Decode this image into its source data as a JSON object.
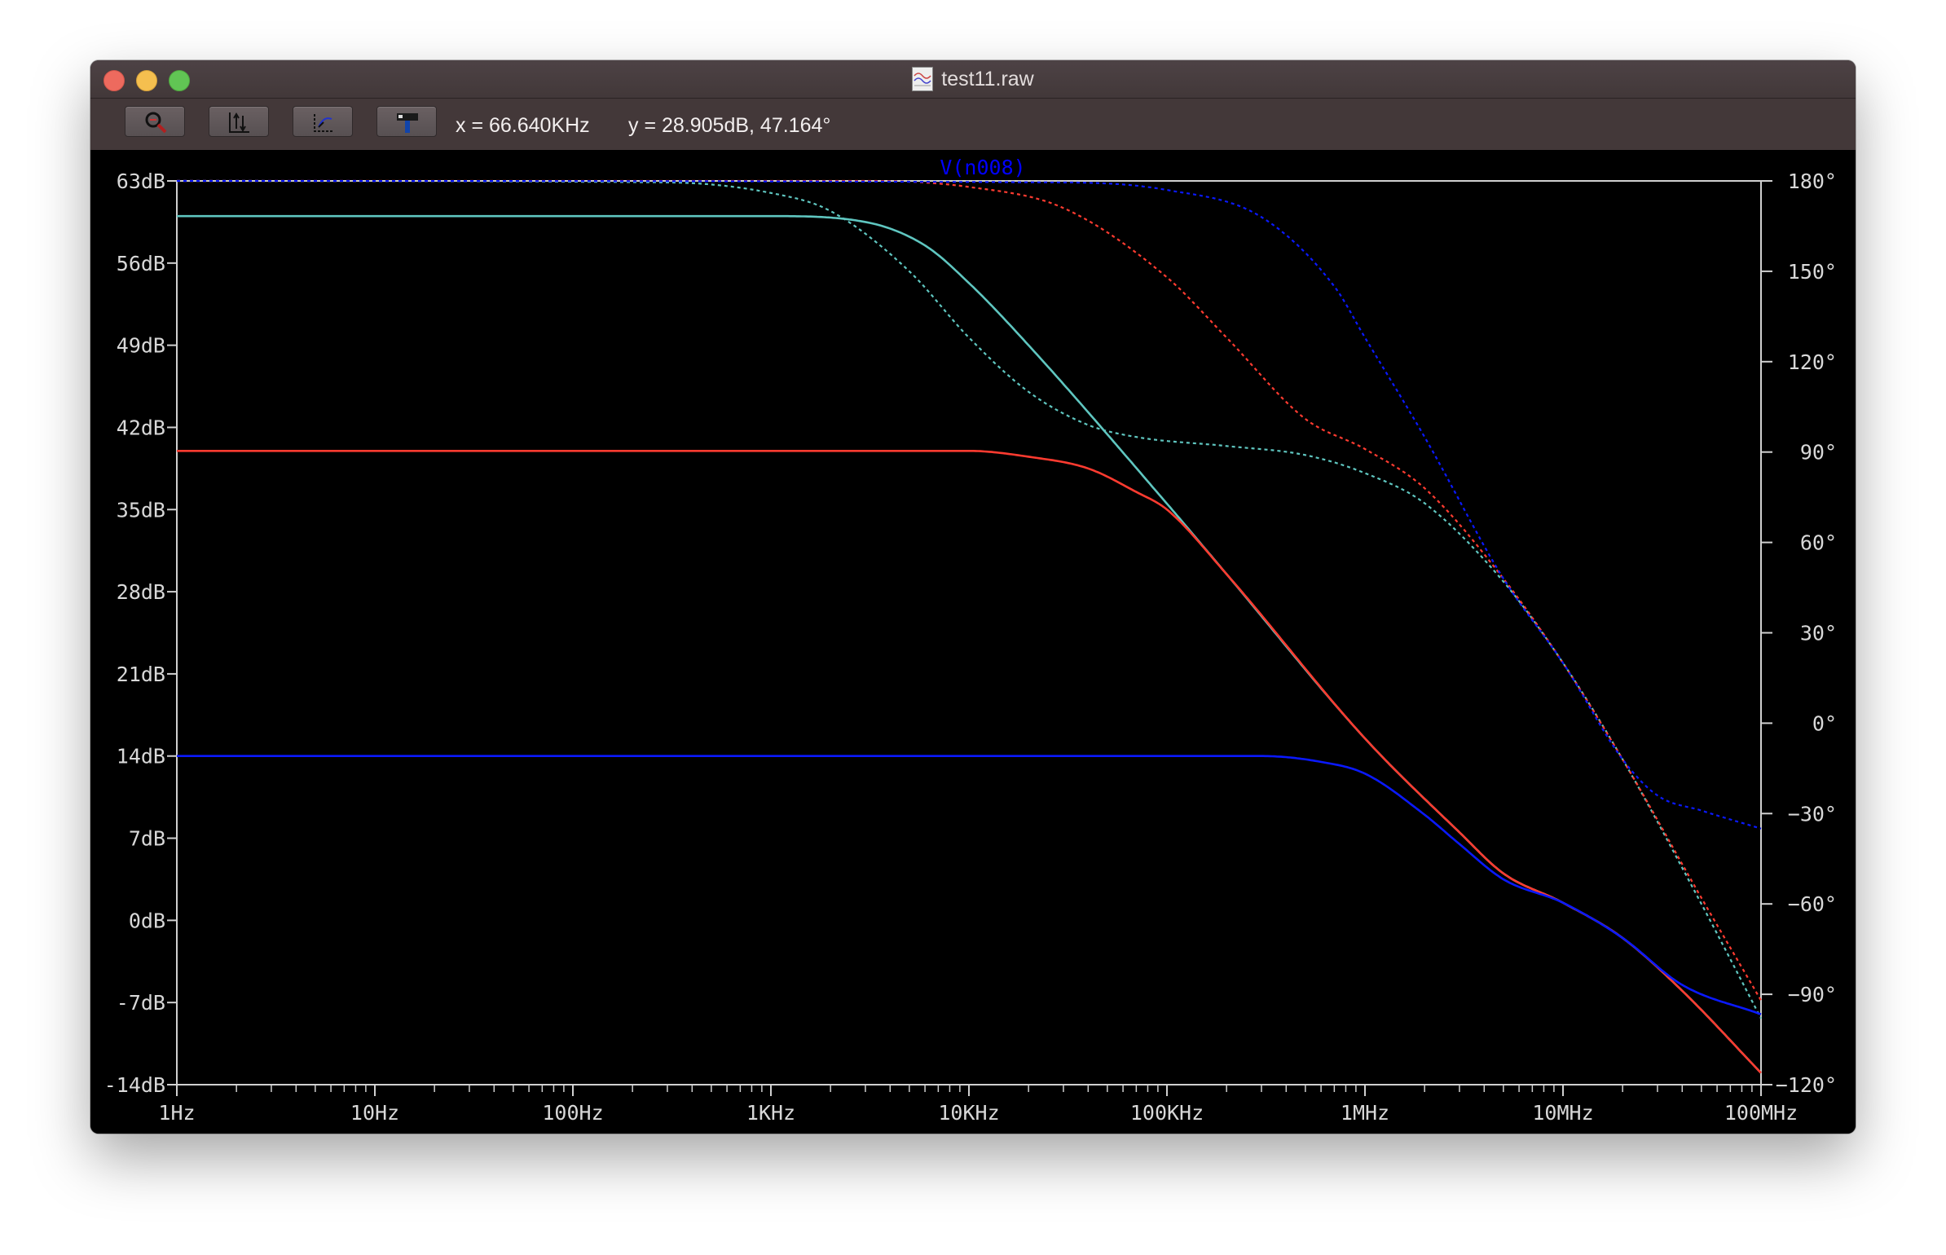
{
  "window": {
    "title": "test11.raw",
    "toolbar": {
      "buttons": [
        {
          "icon": "zoom-icon"
        },
        {
          "icon": "autorange-icon"
        },
        {
          "icon": "pan-icon"
        },
        {
          "icon": "pick-trace-icon"
        }
      ],
      "cursor_x": "x = 66.640KHz",
      "cursor_y": "y = 28.905dB, 47.164°"
    }
  },
  "chart_data": {
    "type": "line",
    "trace_label": "V(n008)",
    "trace_label_color": "#0000ff",
    "x_scale": "log",
    "x_range_hz": [
      1,
      100000000
    ],
    "x_tick_labels": [
      "1Hz",
      "10Hz",
      "100Hz",
      "1KHz",
      "10KHz",
      "100KHz",
      "1MHz",
      "10MHz",
      "100MHz"
    ],
    "x_tick_values_hz": [
      1,
      10,
      100,
      1000,
      10000,
      100000,
      1000000,
      10000000,
      100000000
    ],
    "y_left_range_db": [
      -14,
      63
    ],
    "y_left_tick_values": [
      63,
      56,
      49,
      42,
      35,
      28,
      21,
      14,
      7,
      0,
      -7,
      -14
    ],
    "y_left_tick_labels": [
      "63dB",
      "56dB",
      "49dB",
      "42dB",
      "35dB",
      "28dB",
      "21dB",
      "14dB",
      "7dB",
      "0dB",
      "-7dB",
      "-14dB"
    ],
    "y_right_range_deg": [
      -120,
      180
    ],
    "y_right_tick_values": [
      180,
      150,
      120,
      90,
      60,
      30,
      0,
      -30,
      -60,
      -90,
      -120
    ],
    "y_right_tick_labels": [
      "180°",
      "150°",
      "120°",
      "90°",
      "60°",
      "30°",
      "0°",
      "−30°",
      "−60°",
      "−90°",
      "−120°"
    ],
    "colors": {
      "background": "#000000",
      "axes": "#d0d0d0",
      "text": "#d8d8d8"
    },
    "series": [
      {
        "color": "#5fc6c0",
        "magnitude_db": [
          [
            1,
            60
          ],
          [
            1000,
            60
          ],
          [
            3000,
            59.5
          ],
          [
            6000,
            57.5
          ],
          [
            10000,
            54.3
          ],
          [
            20000,
            49
          ],
          [
            100000,
            35.5
          ],
          [
            200000,
            29.5
          ],
          [
            1000000,
            15.5
          ],
          [
            3000000,
            7.5
          ],
          [
            5000000,
            4
          ],
          [
            10000000,
            1.5
          ],
          [
            20000000,
            -1.5
          ],
          [
            40000000,
            -6
          ],
          [
            100000000,
            -13
          ]
        ],
        "phase_deg": [
          [
            1,
            180
          ],
          [
            300,
            179.5
          ],
          [
            1000,
            176
          ],
          [
            2000,
            170
          ],
          [
            5000,
            150
          ],
          [
            10000,
            128
          ],
          [
            20000,
            110
          ],
          [
            40000,
            99
          ],
          [
            70000,
            95
          ],
          [
            200000,
            92
          ],
          [
            500000,
            89
          ],
          [
            1000000,
            83
          ],
          [
            2000000,
            73
          ],
          [
            5000000,
            47
          ],
          [
            10000000,
            20
          ],
          [
            20000000,
            -12
          ],
          [
            50000000,
            -60
          ],
          [
            100000000,
            -98
          ]
        ]
      },
      {
        "color": "#ff3b30",
        "magnitude_db": [
          [
            1,
            40
          ],
          [
            10000,
            40
          ],
          [
            20000,
            39.5
          ],
          [
            40000,
            38.5
          ],
          [
            70000,
            36.5
          ],
          [
            100000,
            35
          ],
          [
            200000,
            29.5
          ],
          [
            1000000,
            15.5
          ],
          [
            3000000,
            7.5
          ],
          [
            5000000,
            4
          ],
          [
            10000000,
            1.5
          ],
          [
            20000000,
            -1.5
          ],
          [
            40000000,
            -6
          ],
          [
            100000000,
            -13
          ]
        ],
        "phase_deg": [
          [
            1,
            180
          ],
          [
            3000,
            180
          ],
          [
            10000,
            178
          ],
          [
            30000,
            171
          ],
          [
            100000,
            148
          ],
          [
            200000,
            128
          ],
          [
            500000,
            101
          ],
          [
            1000000,
            91
          ],
          [
            2000000,
            78
          ],
          [
            5000000,
            48
          ],
          [
            10000000,
            20
          ],
          [
            20000000,
            -12
          ],
          [
            50000000,
            -58
          ],
          [
            100000000,
            -92
          ]
        ]
      },
      {
        "color": "#0a19ff",
        "magnitude_db": [
          [
            1,
            14
          ],
          [
            300000,
            14
          ],
          [
            600000,
            13.5
          ],
          [
            1000000,
            12.5
          ],
          [
            2000000,
            9
          ],
          [
            3000000,
            6.5
          ],
          [
            5000000,
            3.5
          ],
          [
            10000000,
            1.5
          ],
          [
            20000000,
            -1.5
          ],
          [
            40000000,
            -5.5
          ],
          [
            100000000,
            -8
          ]
        ],
        "phase_deg": [
          [
            1,
            180
          ],
          [
            30000,
            179.5
          ],
          [
            100000,
            177
          ],
          [
            300000,
            168
          ],
          [
            700000,
            145
          ],
          [
            1000000,
            128
          ],
          [
            2000000,
            95
          ],
          [
            5000000,
            48
          ],
          [
            10000000,
            20
          ],
          [
            20000000,
            -12
          ],
          [
            30000000,
            -24
          ],
          [
            50000000,
            -29
          ],
          [
            100000000,
            -35
          ]
        ]
      }
    ]
  }
}
